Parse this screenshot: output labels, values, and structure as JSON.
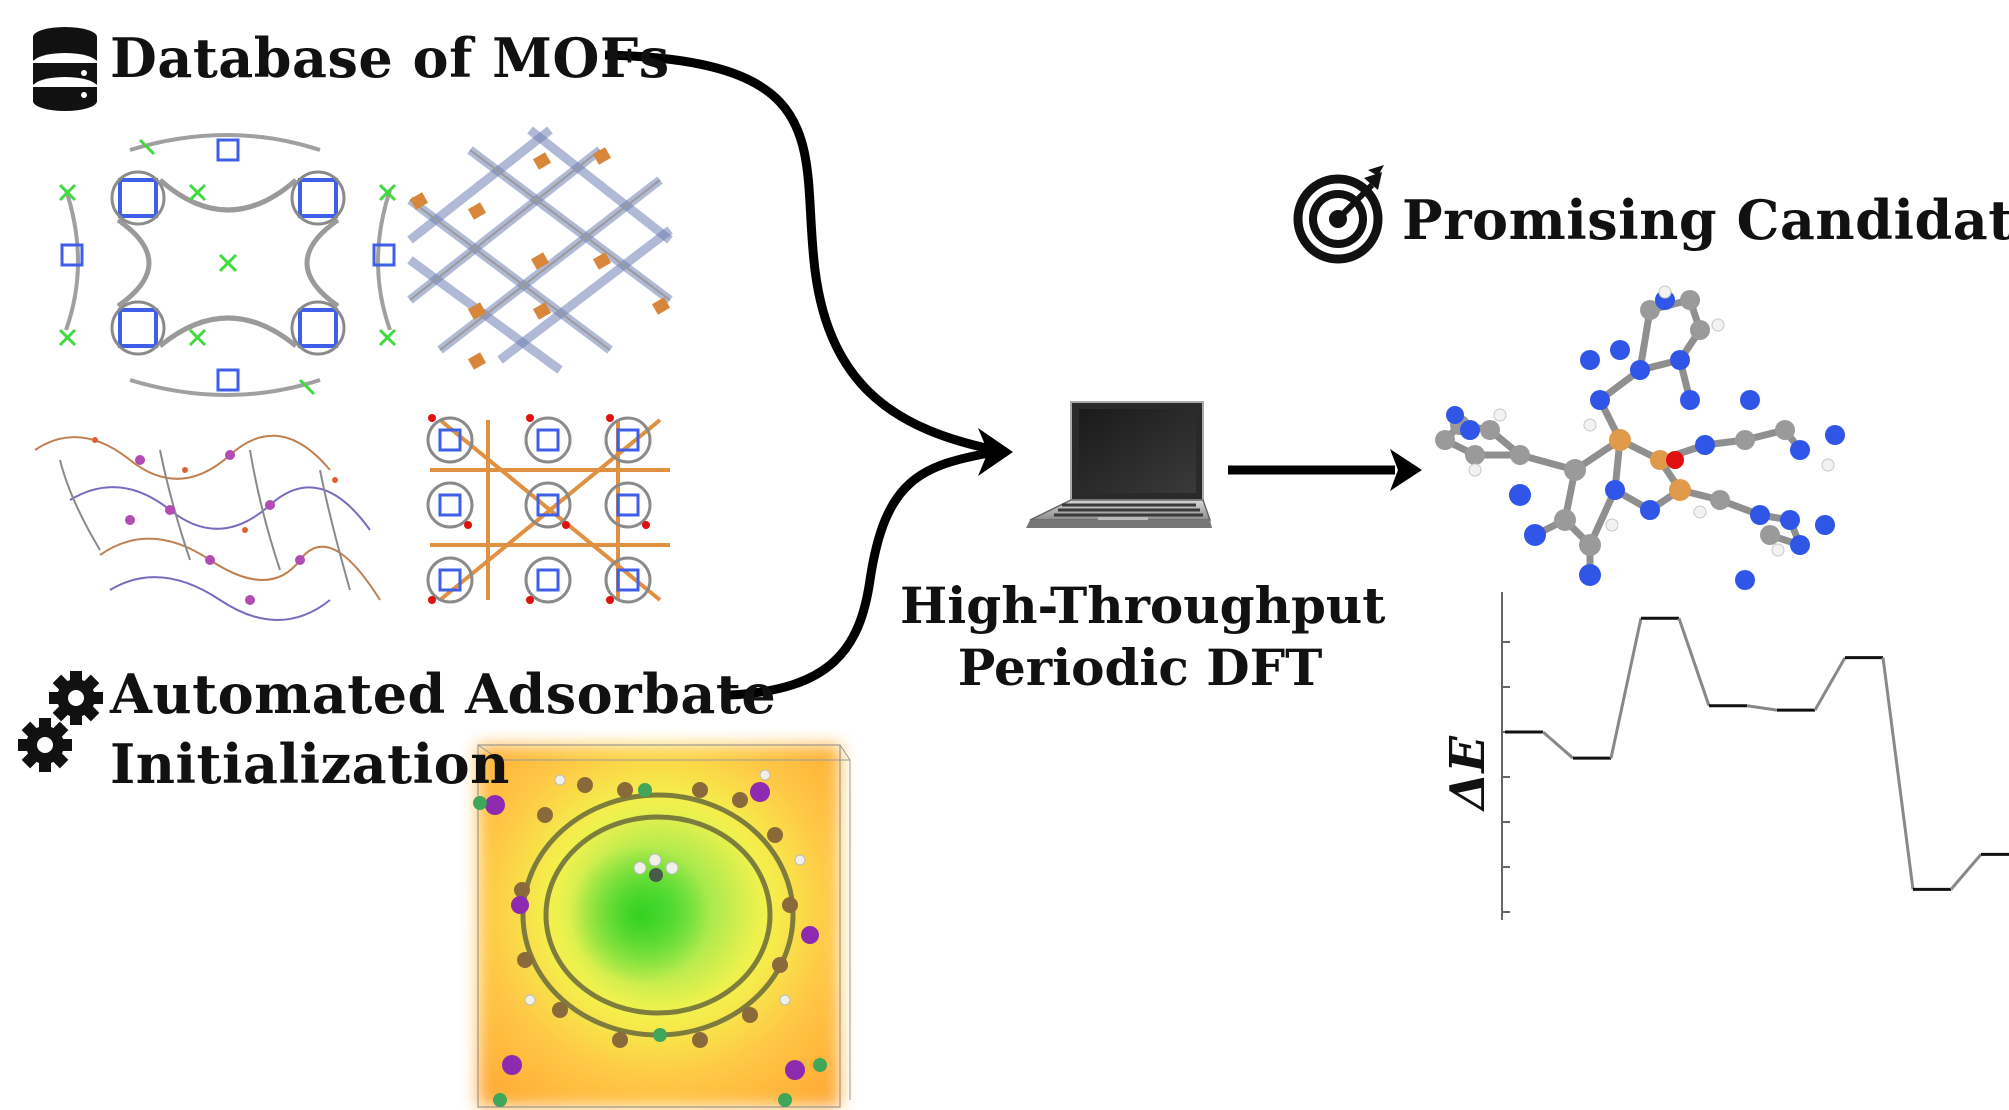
{
  "labels": {
    "database": "Database of MOFs",
    "automated_line1": "Automated Adsorbate",
    "automated_line2": "Initialization",
    "htp_line1": "High-Throughput",
    "htp_line2": "Periodic DFT",
    "promising": "Promising Candidates"
  },
  "icons": [
    "database-icon",
    "gears-icon",
    "laptop-icon",
    "target-icon"
  ],
  "energy_profile": {
    "ylabel": "ΔE",
    "levels": [
      {
        "step": 1,
        "dE": 0.0
      },
      {
        "step": 2,
        "dE": -0.6
      },
      {
        "step": 3,
        "dE": 2.6
      },
      {
        "step": 4,
        "dE": 0.6
      },
      {
        "step": 5,
        "dE": 0.5
      },
      {
        "step": 6,
        "dE": 1.7
      },
      {
        "step": 7,
        "dE": -3.6
      },
      {
        "step": 8,
        "dE": -2.8
      }
    ],
    "yrange": [
      -4.3,
      3.2
    ],
    "y_ticks": 7
  },
  "colors": {
    "carbon": "#9a9a9a",
    "nitrogen": "#2f56e6",
    "metal": "#e0a04a",
    "oxygen": "#e01010",
    "hydrogen": "#f0f0f0",
    "linker_green": "#3ddc3d"
  }
}
